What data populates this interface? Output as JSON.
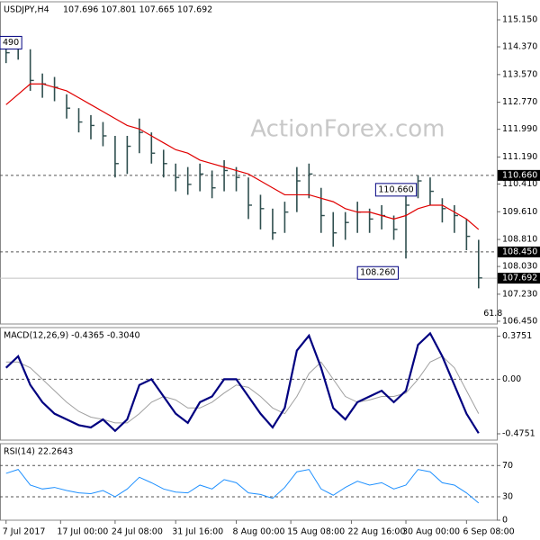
{
  "chart_data": [
    {
      "type": "ohlc",
      "title": "USDJPY,H4",
      "subtitle": "107.696 107.801 107.665 107.692",
      "watermark": "ActionForex.com",
      "color": "#2f4f4f",
      "xlim": [
        -0.5,
        40.5
      ],
      "ylim": [
        106.37,
        115.67
      ],
      "yticks": [
        {
          "value": 115.15,
          "label": "115.150"
        },
        {
          "value": 114.37,
          "label": "114.370"
        },
        {
          "value": 113.57,
          "label": "113.570"
        },
        {
          "value": 112.77,
          "label": "112.770"
        },
        {
          "value": 111.99,
          "label": "111.990"
        },
        {
          "value": 111.19,
          "label": "111.190"
        },
        {
          "value": 110.41,
          "label": "110.410"
        },
        {
          "value": 109.61,
          "label": "109.610"
        },
        {
          "value": 108.81,
          "label": "108.810"
        },
        {
          "value": 108.03,
          "label": "108.030"
        },
        {
          "value": 107.23,
          "label": "107.230"
        },
        {
          "value": 106.45,
          "label": "106.450"
        }
      ],
      "high": [
        114.4,
        114.49,
        114.3,
        113.6,
        113.5,
        113.0,
        112.6,
        112.4,
        112.2,
        111.8,
        111.8,
        112.3,
        111.9,
        111.4,
        111.0,
        110.9,
        111.0,
        110.8,
        111.1,
        110.9,
        110.6,
        110.1,
        109.7,
        109.9,
        110.9,
        111.0,
        110.3,
        109.6,
        109.6,
        109.9,
        109.7,
        109.8,
        109.5,
        110.2,
        110.66,
        110.6,
        110.0,
        109.8,
        109.4,
        108.8
      ],
      "low": [
        113.9,
        114.0,
        113.1,
        112.9,
        112.8,
        112.3,
        111.9,
        111.7,
        111.5,
        110.6,
        110.7,
        111.3,
        111.0,
        110.6,
        110.2,
        110.1,
        110.2,
        110.0,
        110.2,
        110.2,
        109.4,
        109.1,
        108.8,
        109.0,
        109.6,
        110.0,
        109.0,
        108.6,
        108.8,
        109.0,
        109.0,
        109.1,
        108.8,
        108.26,
        110.0,
        109.8,
        109.3,
        109.0,
        108.5,
        107.4
      ],
      "close": [
        114.2,
        114.4,
        113.4,
        113.3,
        113.2,
        112.6,
        112.2,
        112.1,
        111.8,
        111.0,
        111.5,
        111.9,
        111.3,
        111.0,
        110.6,
        110.4,
        110.7,
        110.3,
        110.8,
        110.6,
        109.8,
        109.7,
        109.0,
        109.6,
        110.5,
        110.7,
        109.5,
        109.0,
        109.3,
        109.6,
        109.4,
        109.5,
        109.1,
        109.8,
        110.5,
        110.2,
        109.7,
        109.5,
        108.9,
        107.7
      ],
      "ma": {
        "color": "#e00000",
        "values": [
          112.7,
          113.0,
          113.3,
          113.3,
          113.2,
          113.1,
          112.9,
          112.7,
          112.5,
          112.3,
          112.1,
          112.0,
          111.8,
          111.6,
          111.4,
          111.3,
          111.1,
          111.0,
          110.9,
          110.8,
          110.7,
          110.5,
          110.3,
          110.1,
          110.1,
          110.1,
          110.0,
          109.9,
          109.7,
          109.6,
          109.6,
          109.5,
          109.4,
          109.5,
          109.7,
          109.8,
          109.8,
          109.6,
          109.4,
          109.1
        ]
      },
      "levels": [
        {
          "value": 110.66,
          "label": "110.660",
          "style": "dashed"
        },
        {
          "value": 108.45,
          "label": "108.450",
          "style": "dashed"
        },
        {
          "value": 107.692,
          "label": "107.692",
          "style": "solid"
        }
      ],
      "annotations": [
        {
          "text": "490",
          "x": -0.5,
          "y": 114.49,
          "box": true,
          "position": "at"
        },
        {
          "text": "110.660",
          "x": 30.5,
          "y": 110.66,
          "box": true,
          "position": "below"
        },
        {
          "text": "108.260",
          "x": 29,
          "y": 108.26,
          "box": true,
          "position": "below"
        },
        {
          "text": "61.8",
          "x": 39.4,
          "y": 106.67,
          "box": false,
          "position": "at"
        }
      ]
    },
    {
      "type": "line",
      "title": "MACD(12,26,9) -0.4365 -0.3040",
      "xlim": [
        -0.5,
        40.5
      ],
      "ylim": [
        -0.53,
        0.45
      ],
      "yticks": [
        0.3751,
        {
          "value": 0,
          "label": "0.00"
        },
        -0.4751
      ],
      "levels": [
        {
          "value": 0,
          "style": "dashed"
        }
      ],
      "series": [
        {
          "color": "#a0a0a0",
          "width": 1,
          "values": [
            0.15,
            0.15,
            0.1,
            0.0,
            -0.1,
            -0.2,
            -0.28,
            -0.33,
            -0.35,
            -0.38,
            -0.38,
            -0.3,
            -0.2,
            -0.15,
            -0.18,
            -0.25,
            -0.25,
            -0.2,
            -0.12,
            -0.05,
            -0.07,
            -0.15,
            -0.25,
            -0.3,
            -0.15,
            0.05,
            0.15,
            0.0,
            -0.15,
            -0.2,
            -0.18,
            -0.15,
            -0.15,
            -0.12,
            0.0,
            0.15,
            0.2,
            0.1,
            -0.1,
            -0.3
          ]
        },
        {
          "color": "#000080",
          "width": 2.2,
          "values": [
            0.1,
            0.2,
            -0.05,
            -0.2,
            -0.3,
            -0.35,
            -0.4,
            -0.42,
            -0.35,
            -0.45,
            -0.35,
            -0.05,
            0.0,
            -0.15,
            -0.3,
            -0.38,
            -0.2,
            -0.15,
            0.0,
            0.0,
            -0.15,
            -0.3,
            -0.42,
            -0.25,
            0.25,
            0.38,
            0.1,
            -0.25,
            -0.35,
            -0.2,
            -0.15,
            -0.1,
            -0.2,
            -0.1,
            0.3,
            0.4,
            0.2,
            -0.05,
            -0.3,
            -0.47
          ]
        }
      ]
    },
    {
      "type": "line",
      "title": "RSI(14) 22.2643",
      "xlim": [
        -0.5,
        40.5
      ],
      "ylim": [
        0,
        98
      ],
      "yticks": [
        70,
        30,
        0
      ],
      "levels": [
        {
          "value": 70,
          "style": "dashed"
        },
        {
          "value": 30,
          "style": "dashed"
        }
      ],
      "series": [
        {
          "color": "#1e90ff",
          "width": 1,
          "values": [
            60,
            65,
            45,
            40,
            42,
            38,
            35,
            34,
            38,
            30,
            40,
            55,
            48,
            40,
            36,
            35,
            45,
            40,
            52,
            48,
            35,
            33,
            28,
            42,
            62,
            65,
            40,
            32,
            42,
            50,
            45,
            48,
            40,
            45,
            65,
            62,
            48,
            45,
            35,
            22
          ]
        }
      ],
      "xticks": [
        {
          "value": 0,
          "label": "7 Jul 2017"
        },
        {
          "value": 4.5,
          "label": "17 Jul 00:00"
        },
        {
          "value": 9,
          "label": "24 Jul 08:00"
        },
        {
          "value": 14,
          "label": "31 Jul 16:00"
        },
        {
          "value": 19,
          "label": "8 Aug 00:00"
        },
        {
          "value": 23.5,
          "label": "15 Aug 08:00"
        },
        {
          "value": 28.5,
          "label": "22 Aug 16:00"
        },
        {
          "value": 33,
          "label": "30 Aug 00:00"
        },
        {
          "value": 38,
          "label": "6 Sep 08:00"
        }
      ]
    }
  ]
}
